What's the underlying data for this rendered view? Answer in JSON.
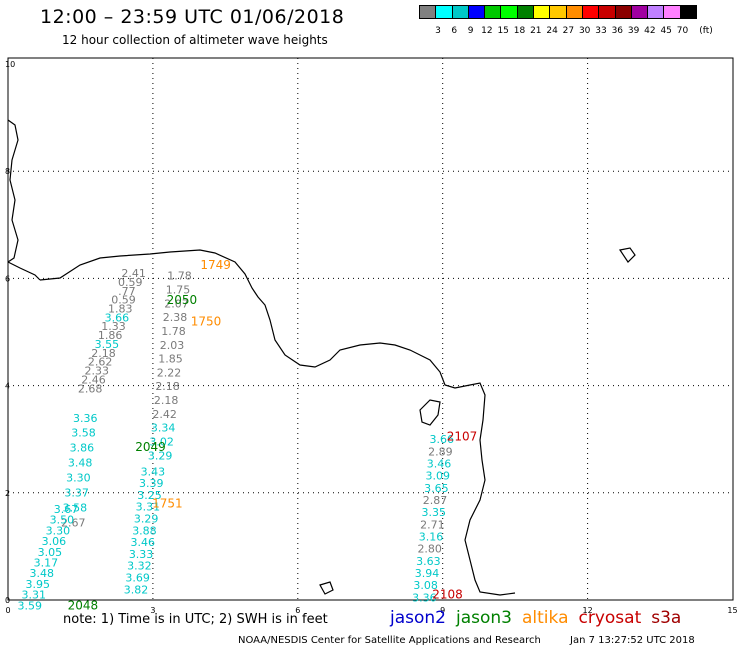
{
  "header": {
    "title": "12:00 – 23:59 UTC 01/06/2018",
    "subtitle": "12 hour collection of altimeter wave heights"
  },
  "legend": {
    "colors": [
      "#808080",
      "#00ffff",
      "#00c8c8",
      "#0000ff",
      "#00c800",
      "#00ff00",
      "#008000",
      "#ffff00",
      "#ffc800",
      "#ff8c00",
      "#ff0000",
      "#c80000",
      "#8b0000",
      "#a000a0",
      "#c080ff",
      "#ff80ff",
      "#000000"
    ],
    "ticks": [
      "3",
      "6",
      "9",
      "12",
      "15",
      "18",
      "21",
      "24",
      "27",
      "30",
      "33",
      "36",
      "39",
      "42",
      "45",
      "70"
    ],
    "unit": "(ft)"
  },
  "map": {
    "x_ticks": [
      "0",
      "3",
      "6",
      "9",
      "12",
      "15"
    ],
    "y_ticks": [
      "0",
      "2",
      "4",
      "6",
      "8",
      "10"
    ],
    "colors": {
      "gray": "#7a7a7a",
      "cyan": "#00c8c8",
      "green": "#008000",
      "orange": "#ff8c00",
      "red": "#c80000"
    },
    "pass_labels": [
      {
        "text": "1749",
        "sat": "altika",
        "x": 4.3,
        "y": 6.25
      },
      {
        "text": "2050",
        "sat": "jason3",
        "x": 3.6,
        "y": 5.6
      },
      {
        "text": "1750",
        "sat": "altika",
        "x": 4.1,
        "y": 5.2
      },
      {
        "text": "2049",
        "sat": "jason3",
        "x": 2.95,
        "y": 2.85
      },
      {
        "text": "1751",
        "sat": "altika",
        "x": 3.3,
        "y": 1.8
      },
      {
        "text": "2048",
        "sat": "jason3",
        "x": 1.55,
        "y": -0.1
      },
      {
        "text": "2107",
        "sat": "cryosat",
        "x": 9.4,
        "y": 3.05
      },
      {
        "text": "2108",
        "sat": "cryosat",
        "x": 9.1,
        "y": 0.1
      }
    ],
    "tracks": [
      {
        "x0": 2.6,
        "y0": 6.1,
        "x1": 1.7,
        "y1": 3.95,
        "values": [
          {
            "v": "2.41",
            "c": "gray"
          },
          {
            "v": "0.59",
            "c": "gray"
          },
          {
            "v": ".77",
            "c": "gray"
          },
          {
            "v": "0.59",
            "c": "gray"
          },
          {
            "v": "1.83",
            "c": "gray"
          },
          {
            "v": "3.66",
            "c": "cyan"
          },
          {
            "v": "1.33",
            "c": "gray"
          },
          {
            "v": "1.86",
            "c": "gray"
          },
          {
            "v": "3.55",
            "c": "cyan"
          },
          {
            "v": "2.18",
            "c": "gray"
          },
          {
            "v": "2.62",
            "c": "gray"
          },
          {
            "v": "2.33",
            "c": "gray"
          },
          {
            "v": "2.46",
            "c": "gray"
          },
          {
            "v": "2.68",
            "c": "gray"
          }
        ]
      },
      {
        "x0": 1.6,
        "y0": 3.4,
        "x1": 1.35,
        "y1": 1.45,
        "values": [
          {
            "v": "3.36",
            "c": "cyan"
          },
          {
            "v": "3.58",
            "c": "cyan"
          },
          {
            "v": "3.86",
            "c": "cyan"
          },
          {
            "v": "3.48",
            "c": "cyan"
          },
          {
            "v": "3.30",
            "c": "cyan"
          },
          {
            "v": "3.37",
            "c": "cyan"
          },
          {
            "v": "3.58",
            "c": "cyan"
          },
          {
            "v": "2.67",
            "c": "gray"
          }
        ]
      },
      {
        "x0": 1.2,
        "y0": 1.7,
        "x1": 0.45,
        "y1": -0.1,
        "values": [
          {
            "v": "3.67",
            "c": "cyan"
          },
          {
            "v": "3.50",
            "c": "cyan"
          },
          {
            "v": "3.30",
            "c": "cyan"
          },
          {
            "v": "3.06",
            "c": "cyan"
          },
          {
            "v": "3.05",
            "c": "cyan"
          },
          {
            "v": "3.17",
            "c": "cyan"
          },
          {
            "v": "3.48",
            "c": "cyan"
          },
          {
            "v": "3.95",
            "c": "cyan"
          },
          {
            "v": "3.31",
            "c": "cyan"
          },
          {
            "v": "3.59",
            "c": "cyan"
          }
        ]
      },
      {
        "x0": 3.55,
        "y0": 6.05,
        "x1": 3.15,
        "y1": 2.7,
        "values": [
          {
            "v": "1.78",
            "c": "gray"
          },
          {
            "v": "1.75",
            "c": "gray"
          },
          {
            "v": "2.07",
            "c": "gray"
          },
          {
            "v": "2.38",
            "c": "gray"
          },
          {
            "v": "1.78",
            "c": "gray"
          },
          {
            "v": "2.03",
            "c": "gray"
          },
          {
            "v": "1.85",
            "c": "gray"
          },
          {
            "v": "2.22",
            "c": "gray"
          },
          {
            "v": "2.18",
            "c": "gray"
          },
          {
            "v": "2.18",
            "c": "gray"
          },
          {
            "v": "2.42",
            "c": "gray"
          },
          {
            "v": "3.34",
            "c": "cyan"
          },
          {
            "v": "3.02",
            "c": "cyan"
          },
          {
            "v": "3.29",
            "c": "cyan"
          }
        ]
      },
      {
        "x0": 3.0,
        "y0": 2.4,
        "x1": 2.65,
        "y1": 0.2,
        "values": [
          {
            "v": "3.43",
            "c": "cyan"
          },
          {
            "v": "3.39",
            "c": "cyan"
          },
          {
            "v": "3.25",
            "c": "cyan"
          },
          {
            "v": "3.31",
            "c": "cyan"
          },
          {
            "v": "3.29",
            "c": "cyan"
          },
          {
            "v": "3.88",
            "c": "cyan"
          },
          {
            "v": "3.46",
            "c": "cyan"
          },
          {
            "v": "3.33",
            "c": "cyan"
          },
          {
            "v": "3.32",
            "c": "cyan"
          },
          {
            "v": "3.69",
            "c": "cyan"
          },
          {
            "v": "3.82",
            "c": "cyan"
          }
        ]
      },
      {
        "x0": 8.98,
        "y0": 3.0,
        "x1": 8.62,
        "y1": 0.05,
        "values": [
          {
            "v": "3.66",
            "c": "cyan"
          },
          {
            "v": "2.89",
            "c": "gray"
          },
          {
            "v": "3.46",
            "c": "cyan"
          },
          {
            "v": "3.09",
            "c": "cyan"
          },
          {
            "v": "3.65",
            "c": "cyan"
          },
          {
            "v": "2.87",
            "c": "gray"
          },
          {
            "v": "3.35",
            "c": "cyan"
          },
          {
            "v": "2.71",
            "c": "gray"
          },
          {
            "v": "3.16",
            "c": "cyan"
          },
          {
            "v": "2.80",
            "c": "gray"
          },
          {
            "v": "3.63",
            "c": "cyan"
          },
          {
            "v": "3.94",
            "c": "cyan"
          },
          {
            "v": "3.08",
            "c": "cyan"
          },
          {
            "v": "3.36",
            "c": "cyan"
          }
        ]
      }
    ]
  },
  "note": "note: 1) Time is in UTC; 2) SWH is in feet",
  "satellites": [
    {
      "name": "jason2",
      "color": "#0000cc"
    },
    {
      "name": "jason3",
      "color": "#008000"
    },
    {
      "name": "altika",
      "color": "#ff8c00"
    },
    {
      "name": "cryosat",
      "color": "#c80000"
    },
    {
      "name": "s3a",
      "color": "#a00000"
    }
  ],
  "footer": {
    "center": "NOAA/NESDIS Center for Satellite Applications and Research",
    "timestamp": "Jan  7 13:27:52 UTC 2018"
  }
}
